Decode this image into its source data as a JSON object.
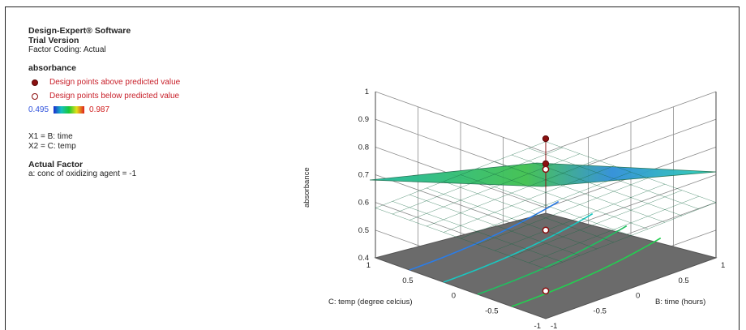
{
  "header": {
    "software": "Design-Expert® Software",
    "version": "Trial Version",
    "coding": "Factor Coding: Actual"
  },
  "response": {
    "name": "absorbance",
    "legend_above": "Design points above predicted value",
    "legend_below": "Design points below predicted value",
    "scale_min": "0.495",
    "scale_max": "0.987"
  },
  "factors": {
    "x1": "X1 = B: time",
    "x2": "X2 = C: temp"
  },
  "actual_factor": {
    "title": "Actual Factor",
    "value": "a: conc of oxidizing agent = -1"
  },
  "colors": {
    "above_point": "#8b1010",
    "below_point_edge": "#8b1010",
    "floor": "#6b6b6b",
    "grid": "#8a8a8a"
  },
  "chart_data": {
    "type": "surface",
    "title": "",
    "zlabel": "absorbance",
    "xlabel": "B: time (hours)",
    "ylabel": "C: temp (degree celcius)",
    "x_ticks": [
      "-1",
      "-0.5",
      "0",
      "0.5",
      "1"
    ],
    "y_ticks": [
      "-1",
      "-0.5",
      "0",
      "0.5",
      "1"
    ],
    "z_ticks": [
      "0.4",
      "0.5",
      "0.6",
      "0.7",
      "0.8",
      "0.9",
      "1"
    ],
    "xlim": [
      -1,
      1
    ],
    "ylim": [
      -1,
      1
    ],
    "zlim": [
      0.4,
      1
    ],
    "surface_corners": [
      {
        "time": -1,
        "temp": -1,
        "absorbance": 0.58
      },
      {
        "time": 1,
        "temp": -1,
        "absorbance": 0.6
      },
      {
        "time": 1,
        "temp": 1,
        "absorbance": 0.6
      },
      {
        "time": -1,
        "temp": 1,
        "absorbance": 0.58
      }
    ],
    "design_points_above": [
      {
        "time": 0,
        "temp": 0,
        "absorbance": 0.74
      },
      {
        "time": 0,
        "temp": 0,
        "absorbance": 0.83
      }
    ],
    "design_points_below": [
      {
        "time": -1,
        "temp": -1,
        "absorbance": 0.5
      },
      {
        "time": 0,
        "temp": 0,
        "absorbance": 0.5
      },
      {
        "time": 1,
        "temp": 1,
        "absorbance": 0.5
      }
    ]
  }
}
